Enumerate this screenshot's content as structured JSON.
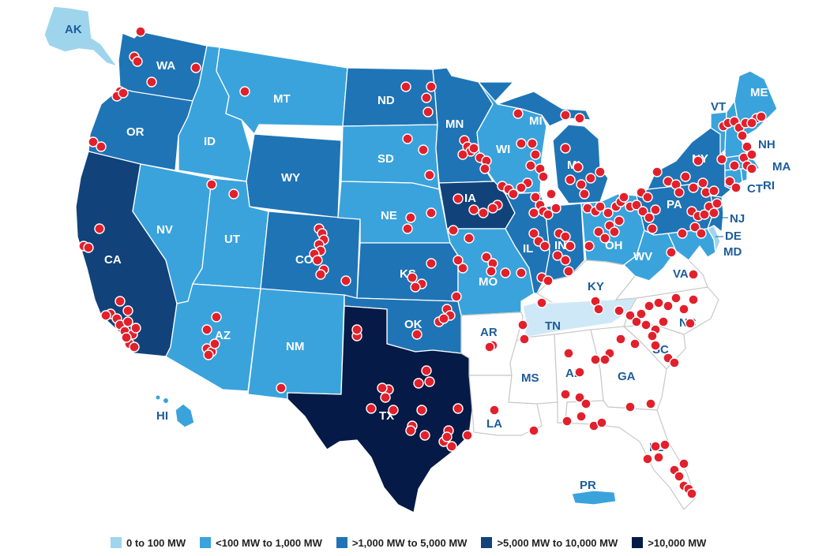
{
  "colors": {
    "c0": "#9fd5ec",
    "c1": "#3aa3dc",
    "c2": "#1f74b5",
    "c3": "#11437a",
    "c4": "#051a46",
    "none": "#ffffff",
    "dot": "#e2202c",
    "label_dark": "#1d5c99"
  },
  "state_labels": {
    "AK": "AK",
    "WA": "WA",
    "OR": "OR",
    "CA": "CA",
    "ID": "ID",
    "NV": "NV",
    "MT": "MT",
    "WY": "WY",
    "UT": "UT",
    "AZ": "AZ",
    "CO": "CO",
    "NM": "NM",
    "ND": "ND",
    "SD": "SD",
    "NE": "NE",
    "KS": "KS",
    "OK": "OK",
    "TX": "TX",
    "MN": "MN",
    "IA": "IA",
    "MO": "MO",
    "AR": "AR",
    "LA": "LA",
    "WI": "WI",
    "IL": "IL",
    "MS": "MS",
    "MI": "MI",
    "MI2": "MI",
    "IN": "IN",
    "KY": "KY",
    "TN": "TN",
    "AL": "AL",
    "OH": "OH",
    "GA": "GA",
    "FL": "FL",
    "WV": "WV",
    "VA": "VA",
    "NC": "NC",
    "SC": "SC",
    "PA": "PA",
    "NY": "NY",
    "VT": "VT",
    "ME": "ME",
    "NH": "NH",
    "MA": "MA",
    "CT": "CT",
    "RI": "RI",
    "NJ": "NJ",
    "DE": "DE",
    "MD": "MD",
    "HI": "HI",
    "PR": "PR"
  },
  "legend": [
    {
      "label": "0 to 100 MW",
      "color": "#9fd5ec"
    },
    {
      "label": "<100 MW to 1,000 MW",
      "color": "#3aa3dc"
    },
    {
      "label": ">1,000 MW to 5,000 MW",
      "color": "#1f74b5"
    },
    {
      "label": ">5,000 MW to 10,000 MW",
      "color": "#11437a"
    },
    {
      "label": ">10,000 MW",
      "color": "#051a46"
    }
  ]
}
